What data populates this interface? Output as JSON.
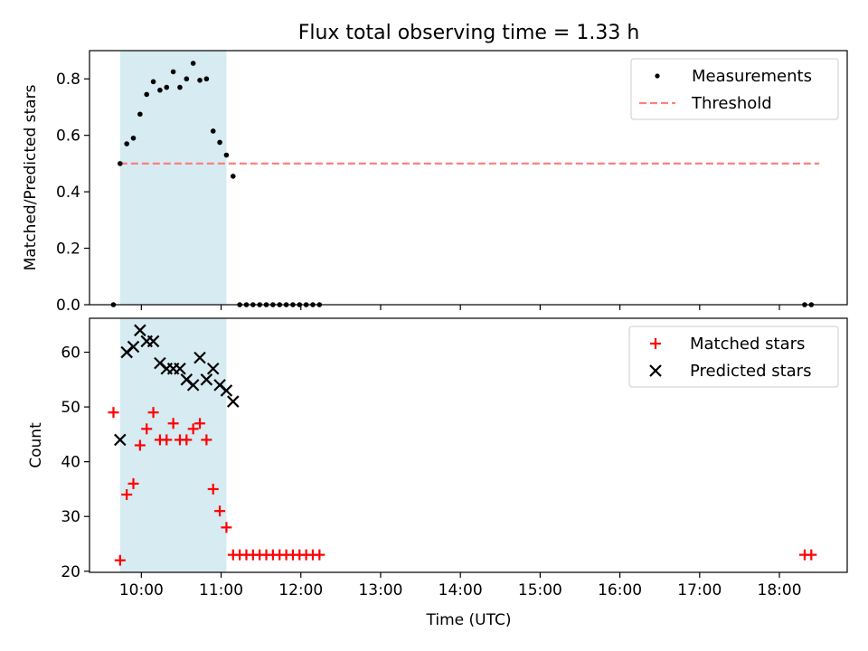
{
  "title": "Flux total observing time = 1.33 h",
  "xlabel": "Time (UTC)",
  "x_tick_labels": [
    "10:00",
    "11:00",
    "12:00",
    "13:00",
    "14:00",
    "15:00",
    "16:00",
    "17:00",
    "18:00"
  ],
  "colors": {
    "shade": "#add8e6",
    "threshold": "#ff7f7f",
    "matched": "#ff0000",
    "predicted": "#000000",
    "measurement": "#000000"
  },
  "chart_data": [
    {
      "type": "scatter",
      "ylabel": "Matched/Predicted stars",
      "ylim": [
        0,
        0.9
      ],
      "xlim": [
        "09:21",
        "18:51"
      ],
      "y_ticks": [
        0.0,
        0.2,
        0.4,
        0.6,
        0.8
      ],
      "y_tick_labels": [
        "0.0",
        "0.2",
        "0.4",
        "0.6",
        "0.8"
      ],
      "legend_position": "top-right",
      "shaded_interval": [
        "09:44",
        "11:04"
      ],
      "threshold": {
        "name": "Threshold",
        "y": 0.5,
        "x": [
          "09:44",
          "18:30"
        ]
      },
      "series": [
        {
          "name": "Measurements",
          "x": [
            "09:39",
            "09:44",
            "09:49",
            "09:54",
            "09:59",
            "10:04",
            "10:09",
            "10:14",
            "10:19",
            "10:24",
            "10:29",
            "10:34",
            "10:39",
            "10:44",
            "10:49",
            "10:54",
            "10:59",
            "11:04",
            "11:09",
            "11:14",
            "11:19",
            "11:24",
            "11:29",
            "11:34",
            "11:39",
            "11:44",
            "11:49",
            "11:54",
            "11:59",
            "12:04",
            "12:09",
            "12:14",
            "18:19",
            "18:24"
          ],
          "y": [
            0.0,
            0.5,
            0.57,
            0.59,
            0.675,
            0.745,
            0.79,
            0.76,
            0.77,
            0.825,
            0.77,
            0.8,
            0.855,
            0.795,
            0.8,
            0.615,
            0.575,
            0.53,
            0.455,
            0.0,
            0.0,
            0.0,
            0.0,
            0.0,
            0.0,
            0.0,
            0.0,
            0.0,
            0.0,
            0.0,
            0.0,
            0.0,
            0.0,
            0.0
          ]
        }
      ]
    },
    {
      "type": "scatter",
      "ylabel": "Count",
      "ylim": [
        19.8,
        66.2
      ],
      "xlim": [
        "09:21",
        "18:51"
      ],
      "y_ticks": [
        20,
        30,
        40,
        50,
        60
      ],
      "y_tick_labels": [
        "20",
        "30",
        "40",
        "50",
        "60"
      ],
      "legend_position": "top-right",
      "shaded_interval": [
        "09:44",
        "11:04"
      ],
      "series": [
        {
          "name": "Matched stars",
          "marker": "plus",
          "x": [
            "09:39",
            "09:44",
            "09:49",
            "09:54",
            "09:59",
            "10:04",
            "10:09",
            "10:14",
            "10:19",
            "10:24",
            "10:29",
            "10:34",
            "10:39",
            "10:44",
            "10:49",
            "10:54",
            "10:59",
            "11:04",
            "11:09",
            "11:14",
            "11:19",
            "11:24",
            "11:29",
            "11:34",
            "11:39",
            "11:44",
            "11:49",
            "11:54",
            "11:59",
            "12:04",
            "12:09",
            "12:14",
            "18:19",
            "18:24"
          ],
          "y": [
            49,
            22,
            34,
            36,
            43,
            46,
            49,
            44,
            44,
            47,
            44,
            44,
            46,
            47,
            44,
            35,
            31,
            28,
            23,
            23,
            23,
            23,
            23,
            23,
            23,
            23,
            23,
            23,
            23,
            23,
            23,
            23,
            23,
            23
          ]
        },
        {
          "name": "Predicted stars",
          "marker": "x",
          "x": [
            "09:44",
            "09:49",
            "09:54",
            "09:59",
            "10:04",
            "10:09",
            "10:14",
            "10:19",
            "10:24",
            "10:29",
            "10:34",
            "10:39",
            "10:44",
            "10:49",
            "10:54",
            "10:59",
            "11:04",
            "11:09"
          ],
          "y": [
            44,
            60,
            61,
            64,
            62,
            62,
            58,
            57,
            57,
            57,
            55,
            54,
            59,
            55,
            57,
            54,
            53,
            51
          ]
        }
      ]
    }
  ]
}
